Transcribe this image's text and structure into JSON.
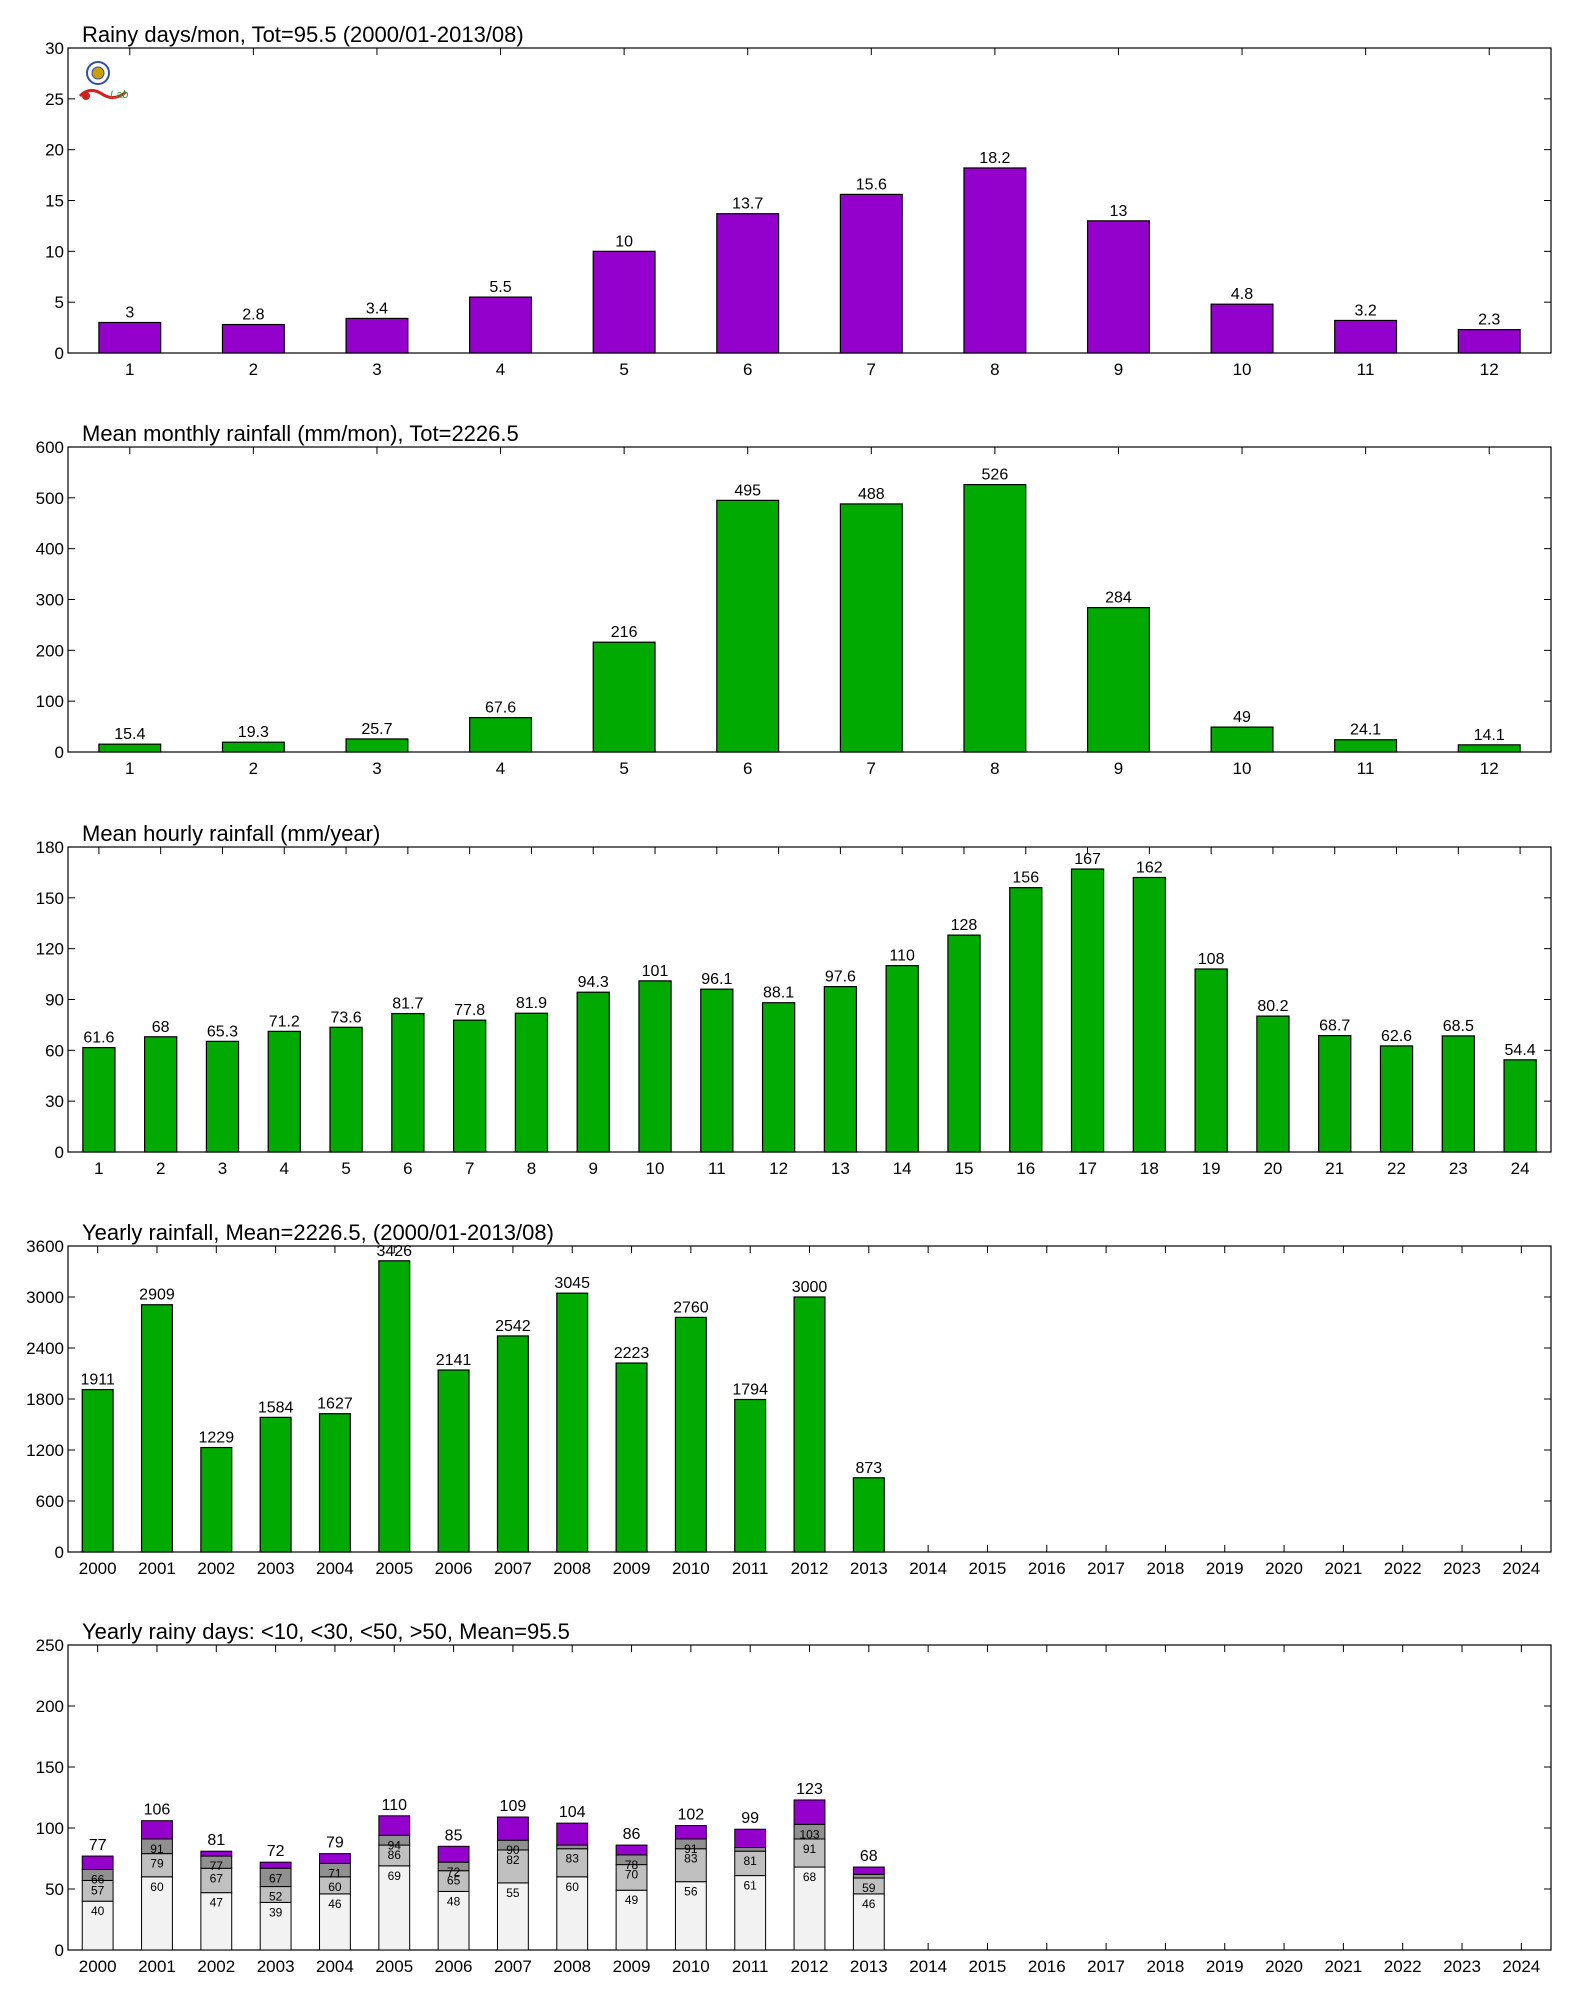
{
  "colors": {
    "purple": "#9400cc",
    "green": "#00aa00",
    "stack_lt10": "#f2f2f2",
    "stack_lt30": "#c0c0c0",
    "stack_lt50": "#909090",
    "stack_gt50": "#9400cc"
  },
  "logo": {
    "icon": "lab-logo-icon",
    "text": "Lab"
  },
  "chart_data": [
    {
      "id": "rainy-days",
      "type": "bar",
      "title": "Rainy days/mon, Tot=95.5 (2000/01-2013/08)",
      "categories": [
        "1",
        "2",
        "3",
        "4",
        "5",
        "6",
        "7",
        "8",
        "9",
        "10",
        "11",
        "12"
      ],
      "values": [
        3,
        2.8,
        3.4,
        5.5,
        10,
        13.7,
        15.6,
        18.2,
        13,
        4.8,
        3.2,
        2.3
      ],
      "labels": [
        "3",
        "2.8",
        "3.4",
        "5.5",
        "10",
        "13.7",
        "15.6",
        "18.2",
        "13",
        "4.8",
        "3.2",
        "2.3"
      ],
      "ylim": [
        0,
        30
      ],
      "yticks": [
        "0",
        "5",
        "10",
        "15",
        "20",
        "25",
        "30"
      ],
      "color": "#9400cc"
    },
    {
      "id": "monthly-rainfall",
      "type": "bar",
      "title": "Mean monthly rainfall (mm/mon), Tot=2226.5",
      "categories": [
        "1",
        "2",
        "3",
        "4",
        "5",
        "6",
        "7",
        "8",
        "9",
        "10",
        "11",
        "12"
      ],
      "values": [
        15.4,
        19.3,
        25.7,
        67.6,
        216,
        495,
        488,
        526,
        284,
        49,
        24.1,
        14.1
      ],
      "labels": [
        "15.4",
        "19.3",
        "25.7",
        "67.6",
        "216",
        "495",
        "488",
        "526",
        "284",
        "49",
        "24.1",
        "14.1"
      ],
      "ylim": [
        0,
        600
      ],
      "yticks": [
        "0",
        "100",
        "200",
        "300",
        "400",
        "500",
        "600"
      ],
      "color": "#00aa00"
    },
    {
      "id": "hourly-rainfall",
      "type": "bar",
      "title": "Mean hourly rainfall (mm/year)",
      "categories": [
        "1",
        "2",
        "3",
        "4",
        "5",
        "6",
        "7",
        "8",
        "9",
        "10",
        "11",
        "12",
        "13",
        "14",
        "15",
        "16",
        "17",
        "18",
        "19",
        "20",
        "21",
        "22",
        "23",
        "24"
      ],
      "values": [
        61.6,
        68,
        65.3,
        71.2,
        73.6,
        81.7,
        77.8,
        81.9,
        94.3,
        101,
        96.1,
        88.1,
        97.6,
        110,
        128,
        156,
        167,
        162,
        108,
        80.2,
        68.7,
        62.6,
        68.5,
        54.4
      ],
      "labels": [
        "61.6",
        "68",
        "65.3",
        "71.2",
        "73.6",
        "81.7",
        "77.8",
        "81.9",
        "94.3",
        "101",
        "96.1",
        "88.1",
        "97.6",
        "110",
        "128",
        "156",
        "167",
        "162",
        "108",
        "80.2",
        "68.7",
        "62.6",
        "68.5",
        "54.4"
      ],
      "ylim": [
        0,
        180
      ],
      "yticks": [
        "0",
        "30",
        "60",
        "90",
        "120",
        "150",
        "180"
      ],
      "color": "#00aa00"
    },
    {
      "id": "yearly-rainfall",
      "type": "bar",
      "title": "Yearly rainfall, Mean=2226.5, (2000/01-2013/08)",
      "categories": [
        "2000",
        "2001",
        "2002",
        "2003",
        "2004",
        "2005",
        "2006",
        "2007",
        "2008",
        "2009",
        "2010",
        "2011",
        "2012",
        "2013",
        "2014",
        "2015",
        "2016",
        "2017",
        "2018",
        "2019",
        "2020",
        "2021",
        "2022",
        "2023",
        "2024"
      ],
      "values": [
        1911,
        2909,
        1229,
        1584,
        1627,
        3426,
        2141,
        2542,
        3045,
        2223,
        2760,
        1794,
        3000,
        873,
        null,
        null,
        null,
        null,
        null,
        null,
        null,
        null,
        null,
        null,
        null
      ],
      "labels": [
        "1911",
        "2909",
        "1229",
        "1584",
        "1627",
        "3426",
        "2141",
        "2542",
        "3045",
        "2223",
        "2760",
        "1794",
        "3000",
        "873",
        "",
        "",
        "",
        "",
        "",
        "",
        "",
        "",
        "",
        "",
        ""
      ],
      "ylim": [
        0,
        3600
      ],
      "yticks": [
        "0",
        "600",
        "1200",
        "1800",
        "2400",
        "3000",
        "3600"
      ],
      "color": "#00aa00"
    },
    {
      "id": "yearly-rainy-days",
      "type": "bar",
      "stacked": true,
      "title": "Yearly rainy days: <10, <30, <50, >50, Mean=95.5",
      "categories": [
        "2000",
        "2001",
        "2002",
        "2003",
        "2004",
        "2005",
        "2006",
        "2007",
        "2008",
        "2009",
        "2010",
        "2011",
        "2012",
        "2013",
        "2014",
        "2015",
        "2016",
        "2017",
        "2018",
        "2019",
        "2020",
        "2021",
        "2022",
        "2023",
        "2024"
      ],
      "ylim": [
        0,
        250
      ],
      "yticks": [
        "0",
        "50",
        "100",
        "150",
        "200",
        "250"
      ],
      "cumulative": {
        "lt10": [
          40,
          60,
          47,
          39,
          46,
          69,
          48,
          55,
          60,
          49,
          56,
          61,
          68,
          46
        ],
        "lt30": [
          57,
          79,
          67,
          52,
          60,
          86,
          65,
          82,
          83,
          70,
          83,
          81,
          91,
          59
        ],
        "lt50": [
          66,
          91,
          77,
          67,
          71,
          94,
          72,
          90,
          86,
          78,
          91,
          84,
          103,
          62
        ],
        "total": [
          77,
          106,
          81,
          72,
          79,
          110,
          85,
          109,
          104,
          86,
          102,
          99,
          123,
          68
        ]
      },
      "labels": {
        "lt10": [
          "40",
          "60",
          "47",
          "39",
          "46",
          "69",
          "48",
          "55",
          "60",
          "49",
          "56",
          "61",
          "68",
          "46"
        ],
        "lt30": [
          "57",
          "79",
          "67",
          "52",
          "60",
          "86",
          "65",
          "82",
          "83",
          "70",
          "83",
          "81",
          "91",
          "59"
        ],
        "lt50": [
          "66",
          "91",
          "77",
          "67",
          "71",
          "94",
          "72",
          "90",
          "",
          "78",
          "91",
          "",
          "103",
          ""
        ],
        "total": [
          "77",
          "106",
          "81",
          "72",
          "79",
          "110",
          "85",
          "109",
          "104",
          "86",
          "102",
          "99",
          "123",
          "68"
        ]
      }
    }
  ]
}
